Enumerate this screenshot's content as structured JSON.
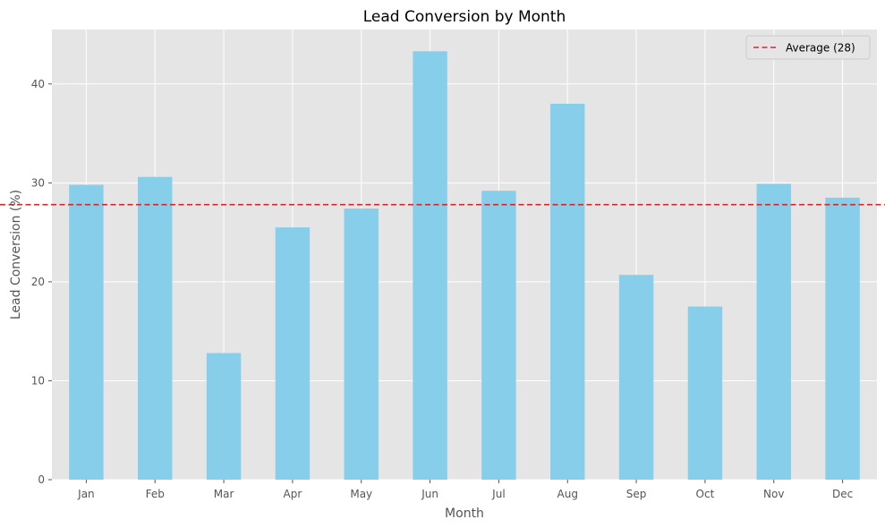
{
  "chart_data": {
    "type": "bar",
    "title": "Lead Conversion by Month",
    "xlabel": "Month",
    "ylabel": "Lead Conversion (%)",
    "categories": [
      "Jan",
      "Feb",
      "Mar",
      "Apr",
      "May",
      "Jun",
      "Jul",
      "Aug",
      "Sep",
      "Oct",
      "Nov",
      "Dec"
    ],
    "values": [
      29.8,
      30.6,
      12.8,
      25.5,
      27.4,
      43.3,
      29.2,
      38.0,
      20.7,
      17.5,
      29.9,
      28.5
    ],
    "ylim": [
      0,
      45.5
    ],
    "yticks": [
      0,
      10,
      20,
      30,
      40
    ],
    "grid": true,
    "bar_color": "#87ceeb",
    "background_color": "#e5e5e5",
    "reference_line": {
      "label": "Average (28)",
      "value": 27.8,
      "color": "#d62728",
      "style": "dashed"
    },
    "legend_position": "upper right"
  }
}
